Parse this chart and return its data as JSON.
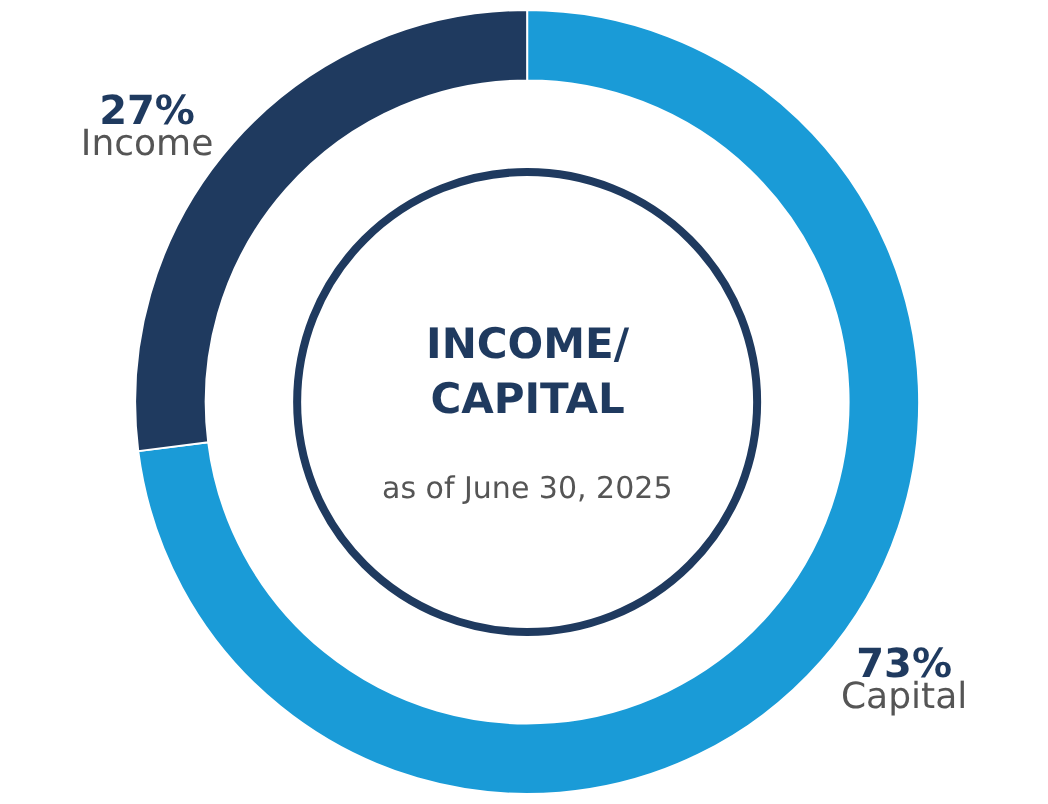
{
  "chart_data": {
    "type": "donut",
    "title": "INCOME/\nCAPITAL",
    "subtitle": "as of June 30, 2025",
    "categories": [
      "Capital",
      "Income"
    ],
    "values": [
      73,
      27
    ],
    "value_labels": [
      "73%",
      "27%"
    ],
    "colors": [
      "#1a9bd7",
      "#1f3a5f"
    ],
    "legend": false
  }
}
